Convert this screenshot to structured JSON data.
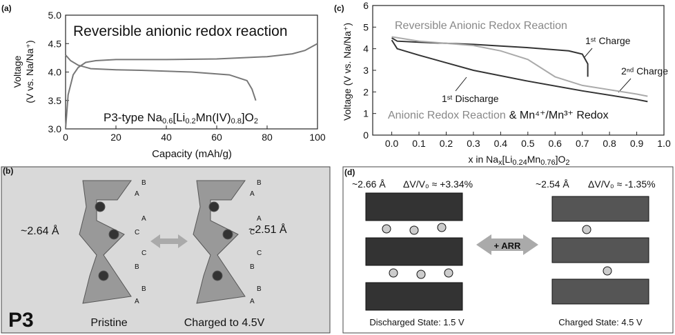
{
  "chart_data": [
    {
      "type": "line",
      "panel_label": "(a)",
      "title": "Reversible anionic redox reaction",
      "annotation": [
        "P3-type Na",
        "0.6",
        "[Li",
        "0.2",
        "Mn(IV)",
        "0.8",
        "]O",
        "2"
      ],
      "x_label": "Capacity (mAh/g)",
      "y_label": [
        "Voltage",
        "(V vs. Na/Na⁺)"
      ],
      "xlim": [
        0,
        100
      ],
      "xticks": [
        0,
        20,
        40,
        60,
        80,
        100
      ],
      "ylim": [
        3.0,
        5.0
      ],
      "yticks": [
        {
          "value": 3,
          "label": "3.0"
        },
        3.5,
        {
          "value": 4,
          "label": "4.0"
        },
        4.5,
        {
          "value": 5,
          "label": "5.0"
        }
      ],
      "series": [
        {
          "color": "#777777",
          "x": [
            0,
            1,
            3,
            5,
            8,
            12,
            20,
            40,
            60,
            80,
            90,
            95,
            100
          ],
          "values": [
            3.0,
            3.6,
            3.95,
            4.08,
            4.17,
            4.2,
            4.22,
            4.22,
            4.23,
            4.27,
            4.32,
            4.38,
            4.5
          ]
        },
        {
          "color": "#777777",
          "x": [
            0,
            2,
            5,
            10,
            20,
            30,
            50,
            65,
            72,
            74,
            75.5
          ],
          "values": [
            4.3,
            4.2,
            4.12,
            4.06,
            4.04,
            4.03,
            4.0,
            3.95,
            3.85,
            3.7,
            3.5
          ]
        }
      ]
    },
    {
      "type": "line",
      "panel_label": "(c)",
      "x_label": [
        "x in Na",
        "x",
        "[Li",
        "0.24",
        "Mn",
        "0.76",
        "]O",
        "2"
      ],
      "y_label": "Voltage (V vs. Na/Na⁺)",
      "xlim": [
        -0.07,
        1.0
      ],
      "xticks": [
        {
          "value": 0,
          "label": "0.0"
        },
        0.1,
        0.2,
        0.3,
        0.4,
        0.5,
        0.6,
        0.7,
        0.8,
        0.9,
        {
          "value": 1,
          "label": "1.0"
        }
      ],
      "ylim": [
        0,
        6
      ],
      "yticks": [
        0,
        1,
        2,
        3,
        4,
        5,
        6
      ],
      "annotations": [
        "Reversible Anionic Redox Reaction",
        "1ˢᵗ Charge",
        "2ⁿᵈ Charge",
        "1ˢᵗ Discharge",
        "Anionic Redox Reaction",
        "& Mn⁴⁺/Mn³⁺ Redox"
      ],
      "series": [
        {
          "color": "#333333",
          "x": [
            0.0,
            0.02,
            0.1,
            0.3,
            0.5,
            0.65,
            0.7,
            0.72,
            0.72
          ],
          "values": [
            4.5,
            4.35,
            4.3,
            4.2,
            4.05,
            3.9,
            3.75,
            3.3,
            2.7
          ]
        },
        {
          "color": "#aaaaaa",
          "x": [
            0.0,
            0.1,
            0.3,
            0.4,
            0.5,
            0.6,
            0.7,
            0.8,
            0.9,
            0.94
          ],
          "values": [
            4.55,
            4.35,
            4.15,
            3.9,
            3.5,
            2.7,
            2.3,
            2.1,
            1.9,
            1.8
          ]
        },
        {
          "color": "#333333",
          "x": [
            0.0,
            0.02,
            0.1,
            0.3,
            0.5,
            0.7,
            0.9,
            0.94
          ],
          "values": [
            4.4,
            4.0,
            3.7,
            3.0,
            2.5,
            2.05,
            1.65,
            1.55
          ]
        }
      ]
    }
  ],
  "panel_b": {
    "label": "(b)",
    "left_distance": "~2.64 Å",
    "right_distance": "~2.51 Å",
    "phase": "P3",
    "left_caption": "Pristine",
    "right_caption": "Charged to 4.5V",
    "left_stacking": [
      "B",
      "A",
      "A",
      "C",
      "C",
      "B",
      "B",
      "A"
    ],
    "right_stacking": [
      "B",
      "A",
      "A",
      "C",
      "C",
      "B",
      "B",
      "A"
    ]
  },
  "panel_d": {
    "label": "(d)",
    "left_distance": "~2.66 Å",
    "left_volume": "ΔV/V₀ ≈ +3.34%",
    "right_distance": "~2.54 Å",
    "right_volume": "ΔV/V₀ ≈ -1.35%",
    "arrow_label": "+ ARR",
    "left_caption": "Discharged State: 1.5 V",
    "right_caption": "Charged State: 4.5 V"
  }
}
